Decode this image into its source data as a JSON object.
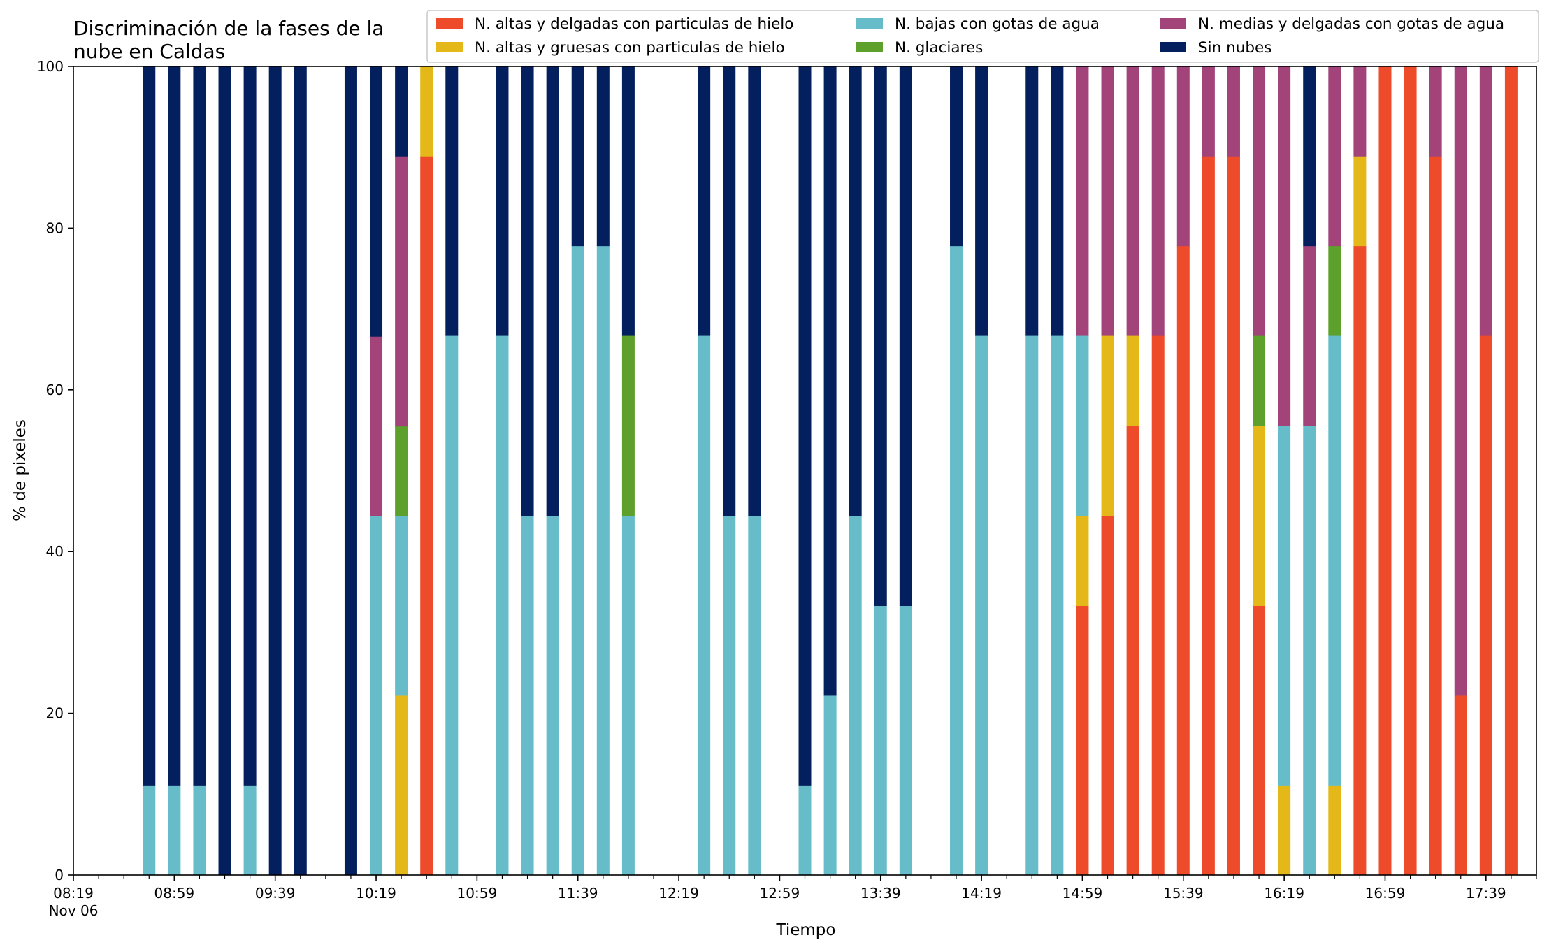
{
  "chart_data": {
    "type": "bar",
    "stacked": true,
    "title_lines": [
      "Discriminación de la fases de la",
      "nube en Caldas"
    ],
    "xlabel": "Tiempo",
    "ylabel": "% de pixeles",
    "ylim": [
      0,
      100
    ],
    "yticks": [
      0,
      20,
      40,
      60,
      80,
      100
    ],
    "grid": false,
    "legend_position": "top-right",
    "legend_columns": 3,
    "x_start": "08:19",
    "x_end": "17:59",
    "x_ticks": [
      {
        "time": "08:19",
        "label": "08:19",
        "sublabel": "Nov 06"
      },
      {
        "time": "08:59",
        "label": "08:59"
      },
      {
        "time": "09:39",
        "label": "09:39"
      },
      {
        "time": "10:19",
        "label": "10:19"
      },
      {
        "time": "10:59",
        "label": "10:59"
      },
      {
        "time": "11:39",
        "label": "11:39"
      },
      {
        "time": "12:19",
        "label": "12:19"
      },
      {
        "time": "12:59",
        "label": "12:59"
      },
      {
        "time": "13:39",
        "label": "13:39"
      },
      {
        "time": "14:19",
        "label": "14:19"
      },
      {
        "time": "14:59",
        "label": "14:59"
      },
      {
        "time": "15:39",
        "label": "15:39"
      },
      {
        "time": "16:19",
        "label": "16:19"
      },
      {
        "time": "16:59",
        "label": "16:59"
      },
      {
        "time": "17:39",
        "label": "17:39"
      }
    ],
    "series": [
      {
        "key": "altas_delgadas",
        "name": "N. altas y delgadas con particulas de hielo",
        "color": "#ee4b2b"
      },
      {
        "key": "altas_gruesas",
        "name": "N. altas y gruesas con particulas de hielo",
        "color": "#e3b818"
      },
      {
        "key": "bajas",
        "name": "N. bajas con gotas de agua",
        "color": "#66bdc9"
      },
      {
        "key": "glaciares",
        "name": "N. glaciares",
        "color": "#5da02c"
      },
      {
        "key": "medias",
        "name": "N. medias y delgadas con gotas de agua",
        "color": "#a2447a"
      },
      {
        "key": "sin_nubes",
        "name": "Sin nubes",
        "color": "#041f5e"
      }
    ],
    "stack_order": [
      "altas_delgadas",
      "altas_gruesas",
      "bajas",
      "glaciares",
      "medias",
      "sin_nubes"
    ],
    "bars": [
      {
        "time": "08:49",
        "bajas": 11.1,
        "sin_nubes": 88.9
      },
      {
        "time": "08:59",
        "bajas": 11.1,
        "sin_nubes": 88.9
      },
      {
        "time": "09:09",
        "bajas": 11.1,
        "sin_nubes": 88.9
      },
      {
        "time": "09:19",
        "sin_nubes": 100
      },
      {
        "time": "09:29",
        "bajas": 11.1,
        "sin_nubes": 88.9
      },
      {
        "time": "09:39",
        "sin_nubes": 100
      },
      {
        "time": "09:49",
        "sin_nubes": 100
      },
      {
        "time": "10:09",
        "sin_nubes": 100
      },
      {
        "time": "10:19",
        "bajas": 44.4,
        "medias": 22.2,
        "sin_nubes": 33.4
      },
      {
        "time": "10:29",
        "altas_gruesas": 22.2,
        "bajas": 22.2,
        "glaciares": 11.1,
        "medias": 33.4,
        "sin_nubes": 11.1
      },
      {
        "time": "10:39",
        "altas_delgadas": 88.9,
        "altas_gruesas": 11.1
      },
      {
        "time": "10:49",
        "bajas": 66.7,
        "sin_nubes": 33.3
      },
      {
        "time": "11:09",
        "bajas": 66.7,
        "sin_nubes": 33.3
      },
      {
        "time": "11:19",
        "bajas": 44.4,
        "sin_nubes": 55.6
      },
      {
        "time": "11:29",
        "bajas": 44.4,
        "sin_nubes": 55.6
      },
      {
        "time": "11:39",
        "bajas": 77.8,
        "sin_nubes": 22.2
      },
      {
        "time": "11:49",
        "bajas": 77.8,
        "sin_nubes": 22.2
      },
      {
        "time": "11:59",
        "bajas": 44.4,
        "glaciares": 22.3,
        "sin_nubes": 33.3
      },
      {
        "time": "12:29",
        "bajas": 66.7,
        "sin_nubes": 33.3
      },
      {
        "time": "12:39",
        "bajas": 44.4,
        "sin_nubes": 55.6
      },
      {
        "time": "12:49",
        "bajas": 44.4,
        "sin_nubes": 55.6
      },
      {
        "time": "13:09",
        "bajas": 11.1,
        "sin_nubes": 88.9
      },
      {
        "time": "13:19",
        "bajas": 22.2,
        "sin_nubes": 77.8
      },
      {
        "time": "13:29",
        "bajas": 44.4,
        "sin_nubes": 55.6
      },
      {
        "time": "13:39",
        "bajas": 33.3,
        "sin_nubes": 66.7
      },
      {
        "time": "13:49",
        "bajas": 33.3,
        "sin_nubes": 66.7
      },
      {
        "time": "14:09",
        "bajas": 77.8,
        "sin_nubes": 22.2
      },
      {
        "time": "14:19",
        "bajas": 66.7,
        "sin_nubes": 33.3
      },
      {
        "time": "14:39",
        "bajas": 66.7,
        "sin_nubes": 33.3
      },
      {
        "time": "14:49",
        "bajas": 66.7,
        "sin_nubes": 33.3
      },
      {
        "time": "14:59",
        "altas_delgadas": 33.3,
        "altas_gruesas": 11.1,
        "bajas": 22.3,
        "medias": 33.3
      },
      {
        "time": "15:09",
        "altas_delgadas": 44.4,
        "altas_gruesas": 22.3,
        "medias": 33.3
      },
      {
        "time": "15:19",
        "altas_delgadas": 55.6,
        "altas_gruesas": 11.1,
        "medias": 33.3
      },
      {
        "time": "15:29",
        "altas_delgadas": 66.7,
        "medias": 33.3
      },
      {
        "time": "15:39",
        "altas_delgadas": 77.8,
        "medias": 22.2
      },
      {
        "time": "15:49",
        "altas_delgadas": 88.9,
        "medias": 11.1
      },
      {
        "time": "15:59",
        "altas_delgadas": 88.9,
        "medias": 11.1
      },
      {
        "time": "16:09",
        "altas_delgadas": 33.3,
        "altas_gruesas": 22.3,
        "glaciares": 11.1,
        "medias": 33.3
      },
      {
        "time": "16:19",
        "altas_gruesas": 11.1,
        "bajas": 44.5,
        "medias": 44.4
      },
      {
        "time": "16:29",
        "bajas": 55.6,
        "medias": 22.2,
        "sin_nubes": 22.2
      },
      {
        "time": "16:39",
        "altas_gruesas": 11.1,
        "bajas": 55.6,
        "glaciares": 11.1,
        "medias": 22.2
      },
      {
        "time": "16:49",
        "altas_delgadas": 77.8,
        "altas_gruesas": 11.1,
        "medias": 11.1
      },
      {
        "time": "16:59",
        "altas_delgadas": 100
      },
      {
        "time": "17:09",
        "altas_delgadas": 100
      },
      {
        "time": "17:19",
        "altas_delgadas": 88.9,
        "medias": 11.1
      },
      {
        "time": "17:29",
        "altas_delgadas": 22.2,
        "medias": 77.8
      },
      {
        "time": "17:39",
        "altas_delgadas": 66.7,
        "medias": 33.3
      },
      {
        "time": "17:49",
        "altas_delgadas": 100
      }
    ]
  }
}
